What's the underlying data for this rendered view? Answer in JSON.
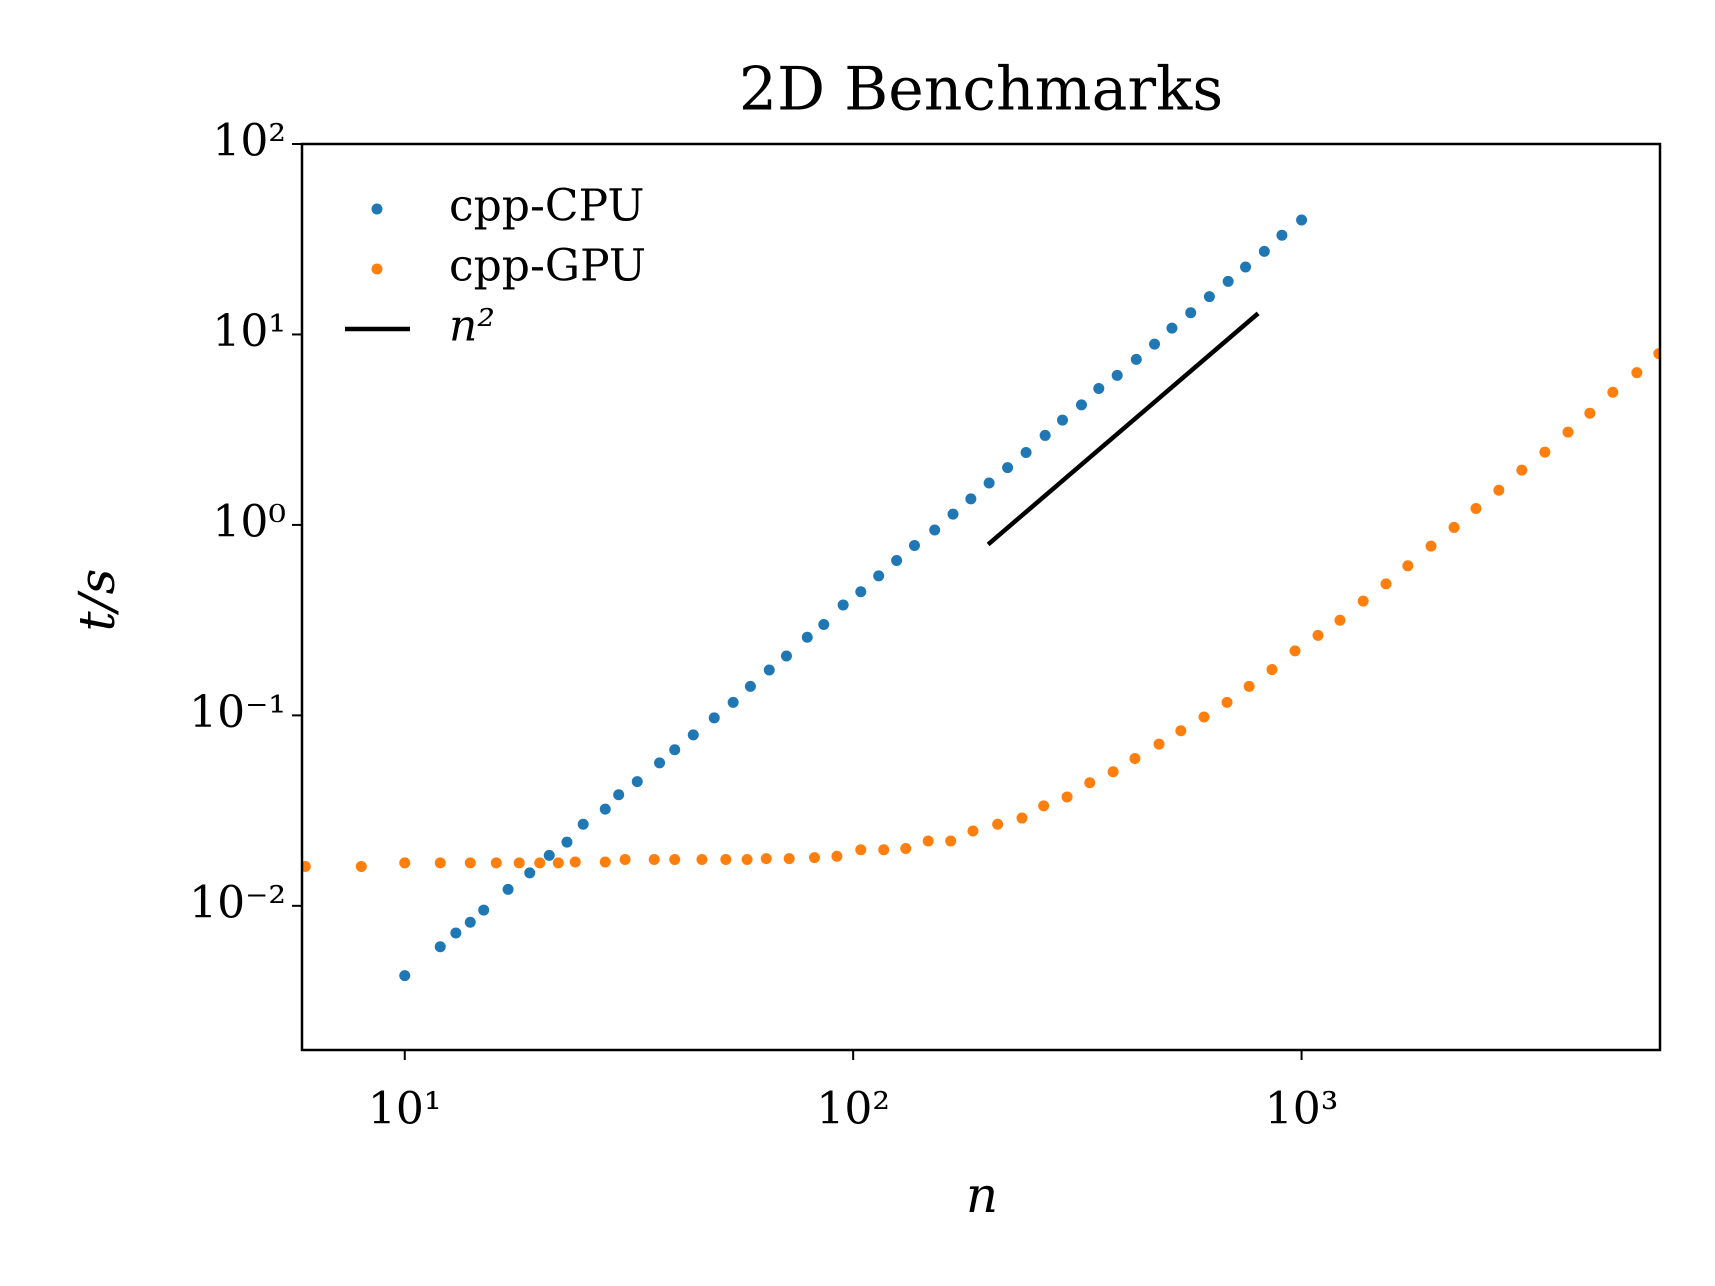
{
  "chart_data": {
    "type": "scatter",
    "title": "2D Benchmarks",
    "xlabel": "n",
    "ylabel": "t/s",
    "xscale": "log",
    "yscale": "log",
    "legend": "upper left",
    "xlim": [
      5.9,
      6300
    ],
    "ylim": [
      0.00175,
      100
    ],
    "xticks": [
      {
        "value": 10,
        "label": "10¹"
      },
      {
        "value": 100,
        "label": "10²"
      },
      {
        "value": 1000,
        "label": "10³"
      }
    ],
    "yticks": [
      {
        "value": 0.01,
        "label": "10⁻²"
      },
      {
        "value": 0.1,
        "label": "10⁻¹"
      },
      {
        "value": 1,
        "label": "10⁰"
      },
      {
        "value": 10,
        "label": "10¹"
      },
      {
        "value": 100,
        "label": "10²"
      }
    ],
    "series": [
      {
        "name": "cpp-CPU",
        "color": "#1f77b4",
        "mode": "markers",
        "x": [
          10,
          12,
          13,
          14,
          15,
          17,
          19,
          21,
          23,
          25,
          28,
          30,
          33,
          37,
          40,
          44,
          49,
          54,
          59,
          65,
          71,
          79,
          86,
          95,
          104,
          114,
          125,
          137,
          152,
          167,
          183,
          201,
          221,
          243,
          268,
          293,
          323,
          353,
          388,
          428,
          470,
          514,
          566,
          623,
          686,
          750,
          826,
          904,
          1000
        ],
        "values": [
          0.0043,
          0.0061,
          0.0072,
          0.0082,
          0.0095,
          0.0122,
          0.0149,
          0.0184,
          0.0216,
          0.0268,
          0.0322,
          0.0383,
          0.0449,
          0.0563,
          0.066,
          0.079,
          0.097,
          0.117,
          0.142,
          0.173,
          0.205,
          0.257,
          0.3,
          0.38,
          0.446,
          0.54,
          0.65,
          0.78,
          0.94,
          1.14,
          1.37,
          1.66,
          2.0,
          2.4,
          2.95,
          3.55,
          4.27,
          5.2,
          6.1,
          7.4,
          8.9,
          10.8,
          13.0,
          15.8,
          19.0,
          22.6,
          27.3,
          33.2,
          39.9
        ]
      },
      {
        "name": "cpp-GPU",
        "color": "#ff7f0e",
        "mode": "markers",
        "x": [
          6,
          8,
          10,
          12,
          14,
          16,
          18,
          20,
          22,
          24,
          28,
          31,
          36,
          40,
          46,
          52,
          58,
          64,
          72,
          82,
          92,
          104,
          117,
          131,
          147,
          165,
          185,
          210,
          238,
          266,
          300,
          337,
          380,
          425,
          481,
          538,
          606,
          682,
          764,
          859,
          967,
          1088,
          1218,
          1372,
          1543,
          1726,
          1944,
          2188,
          2449,
          2754,
          3099,
          3488,
          3928,
          4395,
          4945,
          5594,
          6262
        ],
        "values": [
          0.0161,
          0.0161,
          0.0168,
          0.0168,
          0.0168,
          0.0168,
          0.0168,
          0.0168,
          0.0168,
          0.017,
          0.017,
          0.0175,
          0.0175,
          0.0175,
          0.0175,
          0.0175,
          0.0175,
          0.0177,
          0.0177,
          0.0179,
          0.0182,
          0.0197,
          0.0197,
          0.02,
          0.0219,
          0.0219,
          0.0247,
          0.0268,
          0.0289,
          0.0335,
          0.0373,
          0.0443,
          0.0506,
          0.0594,
          0.0706,
          0.083,
          0.098,
          0.117,
          0.142,
          0.174,
          0.218,
          0.263,
          0.316,
          0.398,
          0.49,
          0.61,
          0.774,
          0.97,
          1.22,
          1.52,
          1.94,
          2.41,
          3.07,
          3.86,
          4.97,
          6.3,
          7.93
        ]
      },
      {
        "name": "n²",
        "color": "#000000",
        "mode": "line",
        "x": [
          200,
          800
        ],
        "values": [
          0.79,
          12.9
        ]
      }
    ]
  }
}
